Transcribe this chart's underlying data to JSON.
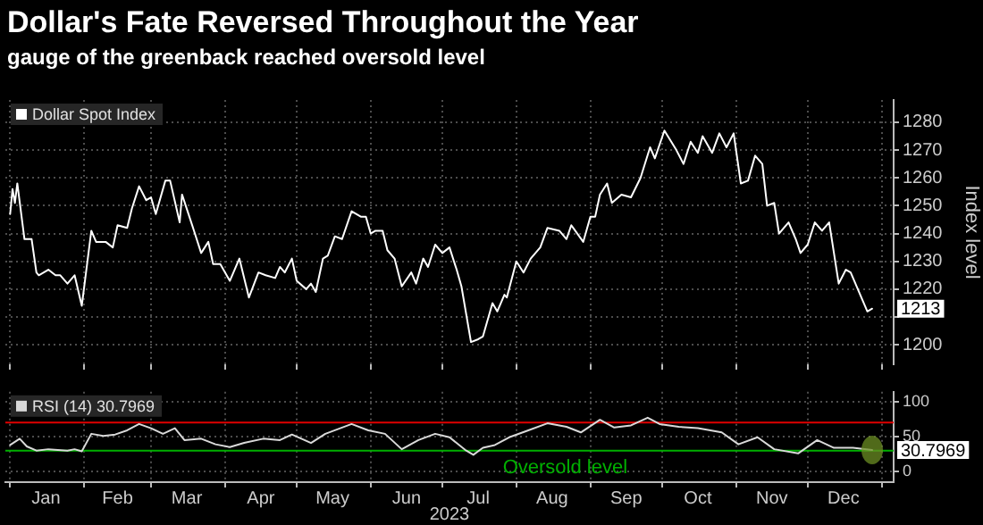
{
  "chart_data": [
    {
      "type": "line",
      "title": "Dollar's Fate Reversed Throughout the Year",
      "subtitle": "gauge of the greenback reached oversold level",
      "ylabel": "Index level",
      "x": [
        "2023-01-01",
        "2023-01-02",
        "2023-01-03",
        "2023-01-04",
        "2023-01-07",
        "2023-01-10",
        "2023-01-12",
        "2023-01-13",
        "2023-01-17",
        "2023-01-20",
        "2023-01-22",
        "2023-01-25",
        "2023-01-28",
        "2023-01-31",
        "2023-02-04",
        "2023-02-06",
        "2023-02-10",
        "2023-02-13",
        "2023-02-15",
        "2023-02-19",
        "2023-02-21",
        "2023-02-24",
        "2023-02-27",
        "2023-03-01",
        "2023-03-03",
        "2023-03-07",
        "2023-03-09",
        "2023-03-13",
        "2023-03-14",
        "2023-03-19",
        "2023-03-22",
        "2023-03-25",
        "2023-03-27",
        "2023-03-30",
        "2023-04-03",
        "2023-04-07",
        "2023-04-11",
        "2023-04-15",
        "2023-04-18",
        "2023-04-22",
        "2023-04-24",
        "2023-04-26",
        "2023-04-29",
        "2023-05-01",
        "2023-05-05",
        "2023-05-07",
        "2023-05-09",
        "2023-05-12",
        "2023-05-14",
        "2023-05-17",
        "2023-05-20",
        "2023-05-24",
        "2023-05-28",
        "2023-05-30",
        "2023-06-01",
        "2023-06-03",
        "2023-06-06",
        "2023-06-08",
        "2023-06-11",
        "2023-06-14",
        "2023-06-18",
        "2023-06-20",
        "2023-06-23",
        "2023-06-25",
        "2023-06-28",
        "2023-07-01",
        "2023-07-04",
        "2023-07-07",
        "2023-07-09",
        "2023-07-13",
        "2023-07-16",
        "2023-07-18",
        "2023-07-22",
        "2023-07-24",
        "2023-07-27",
        "2023-07-28",
        "2023-08-01",
        "2023-08-04",
        "2023-08-07",
        "2023-08-11",
        "2023-08-14",
        "2023-08-19",
        "2023-08-22",
        "2023-08-24",
        "2023-08-29",
        "2023-09-01",
        "2023-09-03",
        "2023-09-05",
        "2023-09-08",
        "2023-09-10",
        "2023-09-14",
        "2023-09-18",
        "2023-09-22",
        "2023-09-26",
        "2023-09-28",
        "2023-10-02",
        "2023-10-07",
        "2023-10-10",
        "2023-10-13",
        "2023-10-16",
        "2023-10-18",
        "2023-10-22",
        "2023-10-25",
        "2023-10-28",
        "2023-10-31",
        "2023-11-03",
        "2023-11-06",
        "2023-11-09",
        "2023-11-12",
        "2023-11-14",
        "2023-11-17",
        "2023-11-19",
        "2023-11-23",
        "2023-11-26",
        "2023-11-28",
        "2023-12-01",
        "2023-12-04",
        "2023-12-07",
        "2023-12-10",
        "2023-12-14",
        "2023-12-17",
        "2023-12-19",
        "2023-12-22",
        "2023-12-26",
        "2023-12-28"
      ],
      "series": [
        {
          "name": "Dollar Spot Index",
          "color": "#ffffff",
          "values": [
            1247,
            1256,
            1251,
            1258,
            1238,
            1238,
            1226,
            1225,
            1227,
            1225,
            1225,
            1222,
            1225,
            1214,
            1241,
            1237,
            1237,
            1235,
            1243,
            1242,
            1249,
            1257,
            1252,
            1253,
            1247,
            1259,
            1259,
            1244,
            1254,
            1241,
            1233,
            1237,
            1229,
            1229,
            1223,
            1231,
            1217,
            1226,
            1225,
            1224,
            1228,
            1226,
            1231,
            1223,
            1220,
            1222,
            1219,
            1231,
            1232,
            1239,
            1238,
            1248,
            1246,
            1246,
            1240,
            1241,
            1241,
            1234,
            1231,
            1221,
            1226,
            1222,
            1231,
            1228,
            1236,
            1233,
            1235,
            1227,
            1221,
            1201,
            1202,
            1203,
            1215,
            1212,
            1218,
            1217,
            1230,
            1226,
            1231,
            1235,
            1242,
            1241,
            1238,
            1243,
            1237,
            1246,
            1246,
            1254,
            1258,
            1251,
            1254,
            1253,
            1260,
            1271,
            1267,
            1277,
            1270,
            1265,
            1273,
            1269,
            1275,
            1269,
            1276,
            1271,
            1276,
            1258,
            1259,
            1268,
            1265,
            1250,
            1251,
            1240,
            1244,
            1238,
            1233,
            1236,
            1244,
            1241,
            1244,
            1222,
            1227,
            1226,
            1220,
            1212,
            1213
          ],
          "value_labels": [
            null,
            null,
            null,
            null,
            null,
            null,
            null,
            null,
            null,
            null,
            null,
            null,
            null,
            null,
            null,
            null,
            null,
            null,
            null,
            null,
            null,
            null,
            null,
            null,
            null,
            null,
            null,
            null,
            null,
            null,
            null,
            null,
            null,
            null,
            null,
            null,
            null,
            null,
            null,
            null,
            null,
            null,
            null,
            null,
            null,
            null,
            null,
            null,
            null,
            null,
            null,
            null,
            null,
            null,
            null,
            null,
            null,
            null,
            null,
            null,
            null,
            null,
            null,
            null,
            null,
            null,
            null,
            null,
            null,
            null,
            null,
            null,
            null,
            null,
            null,
            null,
            null,
            null,
            null,
            null,
            null,
            null,
            null,
            null,
            null,
            null,
            null,
            null,
            null,
            null,
            null,
            null,
            null,
            null,
            null,
            null,
            null,
            null,
            null,
            null,
            null,
            null,
            null,
            null,
            null,
            null,
            null,
            null,
            null,
            null,
            null,
            null,
            null,
            null,
            null,
            null,
            null,
            null,
            null,
            null,
            null,
            null,
            null,
            null,
            "1213"
          ]
        }
      ],
      "xlim": [
        "2022-12-30",
        "2024-01-06"
      ],
      "xticks": [
        {
          "value": "2023-01-01",
          "label": null
        },
        {
          "value": "2023-02-01",
          "label": null
        },
        {
          "value": "2023-03-01",
          "label": null
        },
        {
          "value": "2023-04-01",
          "label": null
        },
        {
          "value": "2023-05-01",
          "label": null
        },
        {
          "value": "2023-06-01",
          "label": null
        },
        {
          "value": "2023-07-01",
          "label": null
        },
        {
          "value": "2023-08-01",
          "label": null
        },
        {
          "value": "2023-09-01",
          "label": null
        },
        {
          "value": "2023-10-01",
          "label": null
        },
        {
          "value": "2023-11-01",
          "label": null
        },
        {
          "value": "2023-12-01",
          "label": null
        },
        {
          "value": "2024-01-01",
          "label": null
        }
      ],
      "ylim": [
        1193,
        1288
      ],
      "yticks": [
        1200,
        {
          "value": 1210,
          "label": null
        },
        1220,
        1230,
        1240,
        1250,
        1260,
        1270,
        1280
      ],
      "grid": true,
      "legend": "top left",
      "tick_labels": "y"
    },
    {
      "type": "line",
      "xlabel": "2023",
      "x": [
        "2023-01-01",
        "2023-01-05",
        "2023-01-08",
        "2023-01-12",
        "2023-01-17",
        "2023-01-25",
        "2023-01-28",
        "2023-01-31",
        "2023-02-04",
        "2023-02-09",
        "2023-02-14",
        "2023-02-19",
        "2023-02-24",
        "2023-03-01",
        "2023-03-06",
        "2023-03-11",
        "2023-03-15",
        "2023-03-22",
        "2023-03-28",
        "2023-04-03",
        "2023-04-09",
        "2023-04-17",
        "2023-04-24",
        "2023-04-29",
        "2023-05-07",
        "2023-05-13",
        "2023-05-24",
        "2023-05-31",
        "2023-06-07",
        "2023-06-14",
        "2023-06-21",
        "2023-06-28",
        "2023-07-04",
        "2023-07-11",
        "2023-07-14",
        "2023-07-18",
        "2023-07-23",
        "2023-07-29",
        "2023-08-06",
        "2023-08-14",
        "2023-08-22",
        "2023-08-28",
        "2023-09-05",
        "2023-09-11",
        "2023-09-18",
        "2023-09-25",
        "2023-09-30",
        "2023-10-08",
        "2023-10-16",
        "2023-10-26",
        "2023-11-02",
        "2023-11-10",
        "2023-11-17",
        "2023-11-27",
        "2023-12-05",
        "2023-12-12",
        "2023-12-20",
        "2023-12-28"
      ],
      "series": [
        {
          "name": "RSI (14) 30.7969",
          "color": "#d9d9d9",
          "values": [
            38,
            47,
            36,
            30,
            32,
            30,
            32,
            29,
            54,
            51,
            53,
            59,
            68,
            62,
            54,
            62,
            45,
            47,
            39,
            35,
            41,
            47,
            45,
            53,
            41,
            54,
            68,
            59,
            54,
            32,
            45,
            54,
            49,
            30,
            24,
            34,
            38,
            49,
            59,
            69,
            64,
            56,
            74,
            63,
            66,
            77,
            68,
            64,
            62,
            56,
            39,
            49,
            32,
            26,
            45,
            34,
            34,
            30.7969
          ],
          "value_labels": [
            null,
            null,
            null,
            null,
            null,
            null,
            null,
            null,
            null,
            null,
            null,
            null,
            null,
            null,
            null,
            null,
            null,
            null,
            null,
            null,
            null,
            null,
            null,
            null,
            null,
            null,
            null,
            null,
            null,
            null,
            null,
            null,
            null,
            null,
            null,
            null,
            null,
            null,
            null,
            null,
            null,
            null,
            null,
            null,
            null,
            null,
            null,
            null,
            null,
            null,
            null,
            null,
            null,
            null,
            null,
            null,
            null,
            "30.7969"
          ]
        }
      ],
      "xlim": [
        "2022-12-30",
        "2024-01-06"
      ],
      "xticks": [
        {
          "value": "2023-01-01",
          "label": null
        },
        {
          "value": "2023-01-16",
          "label": "Jan"
        },
        {
          "value": "2023-02-01",
          "label": null
        },
        {
          "value": "2023-02-15",
          "label": "Feb"
        },
        {
          "value": "2023-03-01",
          "label": null
        },
        {
          "value": "2023-03-16",
          "label": "Mar"
        },
        {
          "value": "2023-04-01",
          "label": null
        },
        {
          "value": "2023-04-16",
          "label": "Apr"
        },
        {
          "value": "2023-05-01",
          "label": null
        },
        {
          "value": "2023-05-16",
          "label": "May"
        },
        {
          "value": "2023-06-01",
          "label": null
        },
        {
          "value": "2023-06-16",
          "label": "Jun"
        },
        {
          "value": "2023-07-01",
          "label": null
        },
        {
          "value": "2023-07-16",
          "label": "Jul"
        },
        {
          "value": "2023-08-01",
          "label": null
        },
        {
          "value": "2023-08-16",
          "label": "Aug"
        },
        {
          "value": "2023-09-01",
          "label": null
        },
        {
          "value": "2023-09-16",
          "label": "Sep"
        },
        {
          "value": "2023-10-01",
          "label": null
        },
        {
          "value": "2023-10-16",
          "label": "Oct"
        },
        {
          "value": "2023-11-01",
          "label": null
        },
        {
          "value": "2023-11-16",
          "label": "Nov"
        },
        {
          "value": "2023-12-01",
          "label": null
        },
        {
          "value": "2023-12-16",
          "label": "Dec"
        },
        {
          "value": "2024-01-01",
          "label": null
        }
      ],
      "ylim": [
        -15,
        114
      ],
      "yticks": [
        0,
        50,
        100
      ],
      "grid": true,
      "legend": "top left",
      "ref_lines": [
        {
          "axis": "y",
          "value": 70,
          "color": "#e00000"
        },
        {
          "axis": "y",
          "value": 30,
          "color": "#00b000",
          "label": "Oversold level"
        }
      ]
    }
  ]
}
